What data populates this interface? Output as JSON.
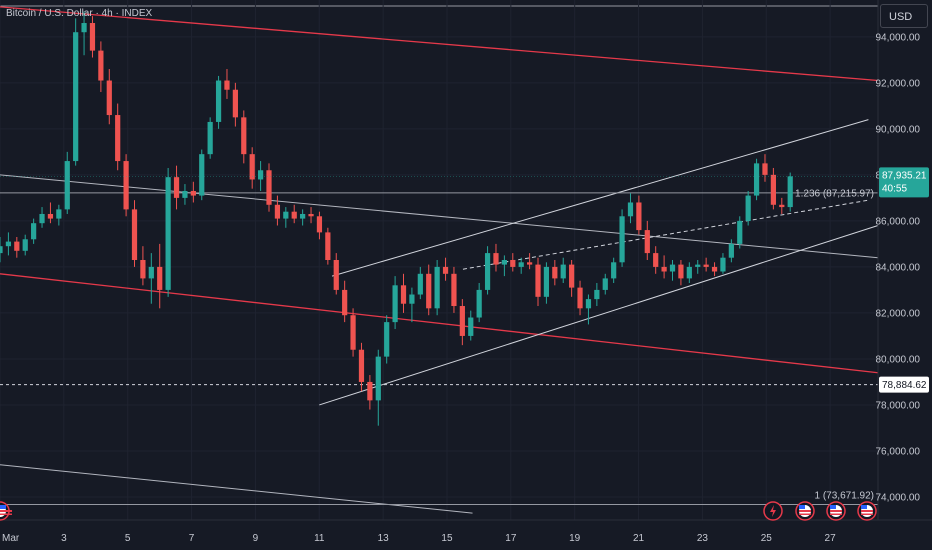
{
  "header": {
    "title": "Bitcoin / U.S. Dollar · 4h · INDEX",
    "currency_button": "USD"
  },
  "price_tags": {
    "last_price": "87,935.21",
    "countdown": "40:55",
    "horizontal_level": "78,884.62",
    "fib_upper_label": "1.236 (87,215.97)",
    "fib_lower_label": "1 (73,671.92)"
  },
  "colors": {
    "background": "#161a25",
    "up_candle": "#26a69a",
    "down_candle": "#ef5350",
    "channel_red": "#e5394a",
    "trendline": "#d1d4dc",
    "last_price_tag": "#26a69a"
  },
  "icons": [
    "flash-icon",
    "us-flag-event-icon",
    "us-flag-event-icon",
    "us-flag-event-icon",
    "us-flag-event-icon"
  ],
  "chart_data": {
    "type": "candlestick",
    "title": "Bitcoin / U.S. Dollar · 4h · INDEX",
    "timeframe": "4h",
    "y_ticks": [
      74000,
      76000,
      78000,
      80000,
      82000,
      84000,
      86000,
      88000,
      90000,
      92000,
      94000
    ],
    "y_tick_labels": [
      "74,000.00",
      "76,000.00",
      "78,000.00",
      "80,000.00",
      "82,000.00",
      "84,000.00",
      "86,000.00",
      "88,000.00",
      "90,000.00",
      "92,000.00",
      "94,000.00"
    ],
    "x_tick_labels": [
      "Mar",
      "3",
      "5",
      "7",
      "9",
      "11",
      "13",
      "15",
      "17",
      "19",
      "21",
      "23",
      "25",
      "27"
    ],
    "x_tick_days": [
      1,
      3,
      5,
      7,
      9,
      11,
      13,
      15,
      17,
      19,
      21,
      23,
      25,
      27
    ],
    "ylim": [
      73000,
      95600
    ],
    "xlim_days": [
      1,
      28.5
    ],
    "candles_ohlc": [
      [
        84600,
        85300,
        84200,
        84900
      ],
      [
        84900,
        85500,
        84500,
        85100
      ],
      [
        85100,
        85300,
        84400,
        84700
      ],
      [
        84700,
        85400,
        84500,
        85200
      ],
      [
        85200,
        86100,
        85000,
        85900
      ],
      [
        85900,
        86600,
        85700,
        86300
      ],
      [
        86300,
        86800,
        85900,
        86100
      ],
      [
        86100,
        86700,
        85800,
        86500
      ],
      [
        86500,
        89000,
        86300,
        88600
      ],
      [
        88600,
        94800,
        88400,
        94200
      ],
      [
        94200,
        95100,
        93200,
        94600
      ],
      [
        94600,
        94900,
        93100,
        93400
      ],
      [
        93400,
        93800,
        91600,
        92100
      ],
      [
        92100,
        92600,
        90200,
        90600
      ],
      [
        90600,
        91100,
        88200,
        88600
      ],
      [
        88600,
        88900,
        86200,
        86500
      ],
      [
        86500,
        86900,
        84000,
        84300
      ],
      [
        84300,
        84900,
        83200,
        83500
      ],
      [
        83500,
        84600,
        82400,
        84000
      ],
      [
        84000,
        85000,
        82200,
        83000
      ],
      [
        83000,
        88300,
        82700,
        87900
      ],
      [
        87900,
        88400,
        86500,
        87000
      ],
      [
        87000,
        87600,
        86700,
        87300
      ],
      [
        87300,
        87700,
        86800,
        87100
      ],
      [
        87100,
        89100,
        86900,
        88900
      ],
      [
        88900,
        90500,
        88700,
        90300
      ],
      [
        90300,
        92300,
        90000,
        92100
      ],
      [
        92100,
        92600,
        91300,
        91700
      ],
      [
        91700,
        92000,
        90100,
        90500
      ],
      [
        90500,
        90800,
        88500,
        88900
      ],
      [
        88900,
        89200,
        87400,
        87800
      ],
      [
        87800,
        88600,
        87300,
        88200
      ],
      [
        88200,
        88500,
        86400,
        86700
      ],
      [
        86700,
        87100,
        85800,
        86100
      ],
      [
        86100,
        86600,
        85700,
        86400
      ],
      [
        86400,
        86700,
        85900,
        86100
      ],
      [
        86100,
        86500,
        85800,
        86300
      ],
      [
        86300,
        86600,
        85900,
        86200
      ],
      [
        86200,
        86400,
        85200,
        85500
      ],
      [
        85500,
        85700,
        84100,
        84300
      ],
      [
        84300,
        84600,
        82800,
        83000
      ],
      [
        83000,
        83400,
        81600,
        81900
      ],
      [
        81900,
        82200,
        80100,
        80400
      ],
      [
        80400,
        80700,
        78600,
        79000
      ],
      [
        79000,
        79300,
        77800,
        78200
      ],
      [
        78200,
        80400,
        77100,
        80100
      ],
      [
        80100,
        81900,
        79800,
        81600
      ],
      [
        81600,
        83600,
        81300,
        83200
      ],
      [
        83200,
        83700,
        82000,
        82400
      ],
      [
        82400,
        83100,
        81600,
        82800
      ],
      [
        82800,
        84000,
        82600,
        83700
      ],
      [
        83700,
        84100,
        81900,
        82200
      ],
      [
        82200,
        84300,
        81900,
        84000
      ],
      [
        84000,
        84400,
        83400,
        83700
      ],
      [
        83700,
        84000,
        82000,
        82300
      ],
      [
        82300,
        82600,
        80600,
        81000
      ],
      [
        81000,
        82100,
        80800,
        81800
      ],
      [
        81800,
        83300,
        81600,
        83000
      ],
      [
        83000,
        84900,
        82800,
        84600
      ],
      [
        84600,
        85000,
        83800,
        84100
      ],
      [
        84100,
        84500,
        83600,
        84300
      ],
      [
        84300,
        84600,
        83800,
        84000
      ],
      [
        84000,
        84400,
        83700,
        84200
      ],
      [
        84200,
        84600,
        83900,
        84100
      ],
      [
        84100,
        84400,
        82300,
        82700
      ],
      [
        82700,
        84200,
        82400,
        84000
      ],
      [
        84000,
        84300,
        83200,
        83500
      ],
      [
        83500,
        84400,
        83300,
        84100
      ],
      [
        84100,
        84300,
        82700,
        83100
      ],
      [
        83100,
        83400,
        81900,
        82200
      ],
      [
        82200,
        82800,
        81500,
        82600
      ],
      [
        82600,
        83300,
        82300,
        83000
      ],
      [
        83000,
        83700,
        82800,
        83500
      ],
      [
        83500,
        84400,
        83300,
        84200
      ],
      [
        84200,
        86500,
        84000,
        86200
      ],
      [
        86200,
        87200,
        85900,
        86800
      ],
      [
        86800,
        87100,
        85400,
        85600
      ],
      [
        85600,
        86000,
        84300,
        84600
      ],
      [
        84600,
        84900,
        83700,
        84000
      ],
      [
        84000,
        84500,
        83500,
        83800
      ],
      [
        83800,
        84300,
        83400,
        84100
      ],
      [
        84100,
        84300,
        83200,
        83500
      ],
      [
        83500,
        84200,
        83300,
        84000
      ],
      [
        84000,
        84300,
        83700,
        84100
      ],
      [
        84100,
        84400,
        83800,
        84000
      ],
      [
        84000,
        84200,
        83600,
        83800
      ],
      [
        83800,
        84600,
        83700,
        84400
      ],
      [
        84400,
        85200,
        84200,
        85000
      ],
      [
        85000,
        86200,
        84800,
        86000
      ],
      [
        86000,
        87300,
        85800,
        87100
      ],
      [
        87100,
        88700,
        86900,
        88500
      ],
      [
        88500,
        88900,
        87700,
        88000
      ],
      [
        88000,
        88300,
        86500,
        86700
      ],
      [
        86700,
        87000,
        86300,
        86600
      ],
      [
        86600,
        88100,
        86400,
        87935
      ]
    ],
    "drawings": {
      "descending_channel_top": {
        "from": [
          1,
          95300
        ],
        "to": [
          28.5,
          92100
        ]
      },
      "descending_channel_mid": {
        "from": [
          1,
          83700
        ],
        "to": [
          28.5,
          79400
        ]
      },
      "descending_channel_bottom": {
        "from": [
          1,
          75400
        ],
        "to": [
          15.8,
          73300
        ]
      },
      "ascending_channel_top": {
        "from": [
          11.4,
          83600
        ],
        "to": [
          28.2,
          90400
        ]
      },
      "ascending_channel_mid": {
        "from": [
          15.5,
          83900
        ],
        "to": [
          28.2,
          86900
        ]
      },
      "ascending_channel_bottom": {
        "from": [
          11,
          78000
        ],
        "to": [
          28.5,
          85800
        ]
      },
      "gray_trendline": {
        "from": [
          1,
          88000
        ],
        "to": [
          28.5,
          84400
        ]
      },
      "horizontal_level": 78884.62,
      "fib_1_236": 87215.97,
      "fib_1": 73671.92
    }
  }
}
